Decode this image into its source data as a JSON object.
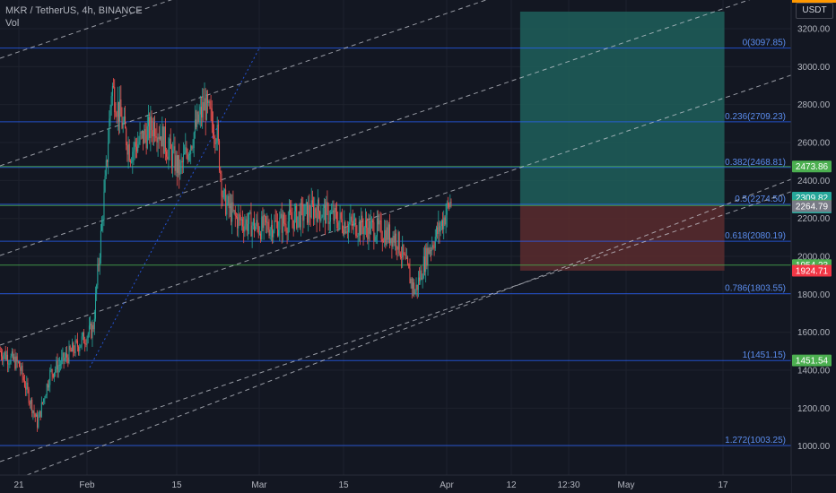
{
  "header": {
    "title": "MKR / TetherUS, 4h, BINANCE",
    "indicator": "Vol"
  },
  "price_axis": {
    "currency": "USDT",
    "ticks": [
      "3200.00",
      "3000.00",
      "2800.00",
      "2600.00",
      "2400.00",
      "2200.00",
      "2000.00",
      "1800.00",
      "1600.00",
      "1400.00",
      "1200.00",
      "1000.00"
    ]
  },
  "time_axis": {
    "ticks": [
      "21",
      "Feb",
      "15",
      "Mar",
      "15",
      "Apr",
      "12",
      "12:30",
      "May",
      "17"
    ]
  },
  "colors": {
    "background": "#131722",
    "fib_line": "#2962ff",
    "fib_text": "#5b8def",
    "channel": "#d1d4dc",
    "horizontal_green": "#4caf50",
    "candle_up": "#26a69a",
    "candle_down": "#ef5350",
    "profit_zone": "#1e5f5b",
    "loss_zone": "#5b2b2e"
  },
  "chart_data": {
    "type": "candlestick",
    "symbol": "MKR / TetherUS",
    "interval": "4h",
    "exchange": "BINANCE",
    "ylim": [
      950,
      3290
    ],
    "price_series": [
      {
        "date": "2021-01-18",
        "price": 1500
      },
      {
        "date": "2021-01-21",
        "price": 1430
      },
      {
        "date": "2021-01-24",
        "price": 1120
      },
      {
        "date": "2021-01-26",
        "price": 1380
      },
      {
        "date": "2021-01-29",
        "price": 1480
      },
      {
        "date": "2021-02-02",
        "price": 1620
      },
      {
        "date": "2021-02-04",
        "price": 2400
      },
      {
        "date": "2021-02-05",
        "price": 2900
      },
      {
        "date": "2021-02-08",
        "price": 2550
      },
      {
        "date": "2021-02-12",
        "price": 2700
      },
      {
        "date": "2021-02-16",
        "price": 2450
      },
      {
        "date": "2021-02-20",
        "price": 2800
      },
      {
        "date": "2021-02-22",
        "price": 2650
      },
      {
        "date": "2021-02-23",
        "price": 2300
      },
      {
        "date": "2021-02-25",
        "price": 2200
      },
      {
        "date": "2021-03-01",
        "price": 2150
      },
      {
        "date": "2021-03-05",
        "price": 2180
      },
      {
        "date": "2021-03-10",
        "price": 2250
      },
      {
        "date": "2021-03-15",
        "price": 2170
      },
      {
        "date": "2021-03-19",
        "price": 2150
      },
      {
        "date": "2021-03-23",
        "price": 2100
      },
      {
        "date": "2021-03-26",
        "price": 1810
      },
      {
        "date": "2021-03-28",
        "price": 2020
      },
      {
        "date": "2021-03-30",
        "price": 2150
      },
      {
        "date": "2021-04-01",
        "price": 2309.82
      }
    ],
    "fib_levels": [
      {
        "ratio": "0",
        "price": 3097.85,
        "label": "0(3097.85)"
      },
      {
        "ratio": "0.236",
        "price": 2709.23,
        "label": "0.236(2709.23)"
      },
      {
        "ratio": "0.382",
        "price": 2468.81,
        "label": "0.382(2468.81)"
      },
      {
        "ratio": "0.5",
        "price": 2274.5,
        "label": "0.5(2274.50)"
      },
      {
        "ratio": "0.618",
        "price": 2080.19,
        "label": "0.618(2080.19)"
      },
      {
        "ratio": "0.786",
        "price": 1803.55,
        "label": "0.786(1803.55)"
      },
      {
        "ratio": "1",
        "price": 1451.15,
        "label": "1(1451.15)"
      },
      {
        "ratio": "1.272",
        "price": 1003.25,
        "label": "1.272(1003.25)"
      }
    ],
    "horizontal_lines": [
      2473.86,
      2268.07,
      1954.23
    ],
    "position": {
      "start": "2021-04-12",
      "end": "2021-05-15",
      "entry": 2268.07,
      "target": 3290,
      "stop": 1924.71
    },
    "price_labels": [
      {
        "text": "2473.86",
        "price": 2473.86,
        "color": "#4caf50"
      },
      {
        "text": "2309.82",
        "price": 2309.82,
        "color": "#26a69a",
        "countdown": "01:48:11"
      },
      {
        "text": "2268.07",
        "price": 2268.07,
        "color": "#4caf50"
      },
      {
        "text": "2264.79",
        "price": 2264.79,
        "color": "#787b86"
      },
      {
        "text": "1954.23",
        "price": 1954.23,
        "color": "#4caf50"
      },
      {
        "text": "1924.71",
        "price": 1924.71,
        "color": "#f23645"
      },
      {
        "text": "1451.54",
        "price": 1451.54,
        "color": "#4caf50"
      }
    ]
  }
}
